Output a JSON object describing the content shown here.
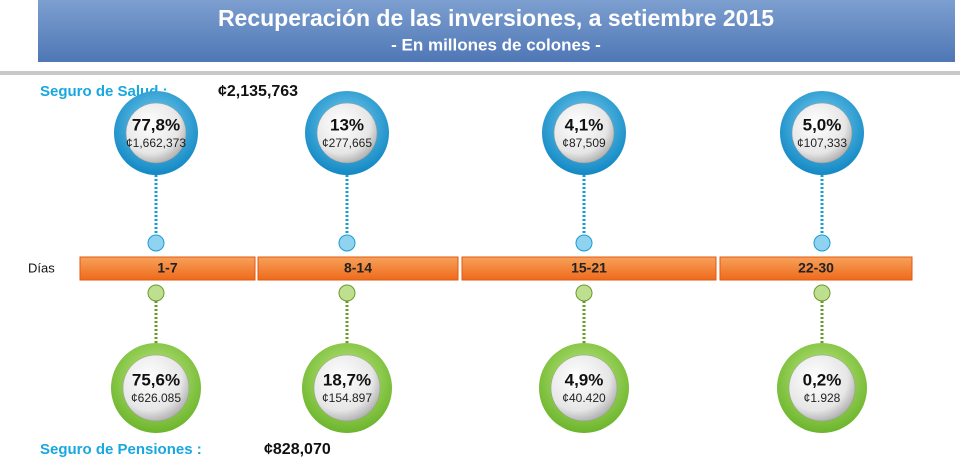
{
  "header": {
    "title": "Recuperación de las inversiones, a setiembre 2015",
    "subtitle": "- En millones de colones -"
  },
  "salud": {
    "label": "Seguro de Salud :",
    "total": "¢2,135,763",
    "items": [
      {
        "pct": "77,8%",
        "amount": "¢1,662,373"
      },
      {
        "pct": "13%",
        "amount": "¢277,665"
      },
      {
        "pct": "4,1%",
        "amount": "¢87,509"
      },
      {
        "pct": "5,0%",
        "amount": "¢107,333"
      }
    ]
  },
  "timeline": {
    "label": "Días",
    "periods": [
      "1-7",
      "8-14",
      "15-21",
      "22-30"
    ]
  },
  "pensiones": {
    "label": "Seguro de Pensiones :",
    "total": "¢828,070",
    "items": [
      {
        "pct": "75,6%",
        "amount": "¢626.085"
      },
      {
        "pct": "18,7%",
        "amount": "¢154.897"
      },
      {
        "pct": "4,9%",
        "amount": "¢40.420"
      },
      {
        "pct": "0,2%",
        "amount": "¢1.928"
      }
    ]
  }
}
